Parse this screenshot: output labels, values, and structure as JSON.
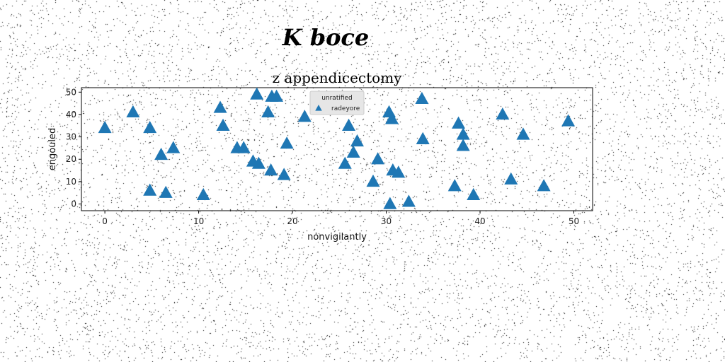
{
  "suptitle": "K boce",
  "chart_data": {
    "type": "scatter",
    "title": "z appendicectomy",
    "xlabel": "nonvigilantly",
    "ylabel": "engouled",
    "xlim": [
      -2.5,
      52
    ],
    "ylim": [
      -3,
      52
    ],
    "xticks": [
      0,
      10,
      20,
      30,
      40,
      50
    ],
    "yticks": [
      0,
      10,
      20,
      30,
      40,
      50
    ],
    "grid": false,
    "legend": {
      "title": "unratified",
      "placement": "top-center"
    },
    "series": [
      {
        "name": "radeyore",
        "marker": "triangle-up",
        "color": "#1f77b4",
        "points": [
          [
            0,
            34
          ],
          [
            3,
            41
          ],
          [
            4.8,
            34
          ],
          [
            4.8,
            6
          ],
          [
            6,
            22
          ],
          [
            6.5,
            5
          ],
          [
            7.3,
            25
          ],
          [
            10.5,
            4
          ],
          [
            12.3,
            43
          ],
          [
            12.6,
            35
          ],
          [
            14.1,
            25
          ],
          [
            14.8,
            25
          ],
          [
            16.2,
            49
          ],
          [
            16.4,
            18
          ],
          [
            15.8,
            19
          ],
          [
            17.4,
            41
          ],
          [
            17.8,
            48
          ],
          [
            18.3,
            48
          ],
          [
            17.7,
            15
          ],
          [
            19.1,
            13
          ],
          [
            19.4,
            27
          ],
          [
            21.3,
            39
          ],
          [
            25.6,
            18
          ],
          [
            26,
            35
          ],
          [
            26.5,
            23
          ],
          [
            26.9,
            28
          ],
          [
            28.6,
            10
          ],
          [
            29.1,
            20
          ],
          [
            30.3,
            41
          ],
          [
            30.6,
            38
          ],
          [
            30.7,
            15
          ],
          [
            31.3,
            14
          ],
          [
            30.4,
            0
          ],
          [
            32.4,
            1
          ],
          [
            33.8,
            47
          ],
          [
            33.9,
            29
          ],
          [
            37.3,
            8
          ],
          [
            37.7,
            36
          ],
          [
            38.2,
            31
          ],
          [
            38.2,
            26
          ],
          [
            39.3,
            4
          ],
          [
            42.4,
            40
          ],
          [
            43.3,
            11
          ],
          [
            44.6,
            31
          ],
          [
            46.8,
            8
          ],
          [
            49.4,
            37
          ]
        ]
      }
    ]
  }
}
